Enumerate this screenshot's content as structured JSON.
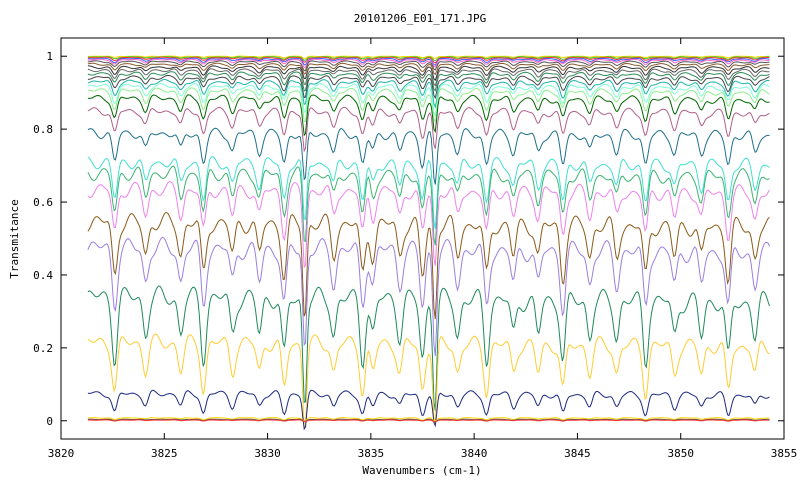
{
  "chart_data": {
    "type": "line",
    "title": "20101206_E01_171.JPG",
    "xlabel": "Wavenumbers (cm-1)",
    "ylabel": "Transmitance",
    "xlim": [
      3820,
      3855
    ],
    "ylim": [
      -0.05,
      1.05
    ],
    "x_data_range": [
      3821.3,
      3854.3
    ],
    "x_ticks": [
      3820,
      3825,
      3830,
      3835,
      3840,
      3845,
      3850,
      3855
    ],
    "y_ticks": [
      0,
      0.2,
      0.4,
      0.6,
      0.8,
      1
    ],
    "y_tick_labels": [
      "0",
      "0.2",
      "0.4",
      "0.6",
      "0.8",
      "1"
    ],
    "grid": false,
    "legend": "none",
    "absorption_lines_cm1": [
      3822.6,
      3824.1,
      3825.8,
      3826.9,
      3828.3,
      3829.6,
      3830.8,
      3831.8,
      3833.2,
      3834.6,
      3835.1,
      3836.4,
      3837.5,
      3838.1,
      3839.2,
      3840.6,
      3841.9,
      3843.1,
      3844.3,
      3845.6,
      3846.9,
      3848.3,
      3849.7,
      3851.0,
      3852.3,
      3853.6
    ],
    "series": [
      {
        "color": "#ffd400",
        "baseline": 1.0,
        "depth": 0.004
      },
      {
        "color": "#33cc33",
        "baseline": 0.998,
        "depth": 0.006
      },
      {
        "color": "#ff3333",
        "baseline": 0.996,
        "depth": 0.008
      },
      {
        "color": "#3366ff",
        "baseline": 0.993,
        "depth": 0.01
      },
      {
        "color": "#ff66cc",
        "baseline": 0.99,
        "depth": 0.012
      },
      {
        "color": "#555555",
        "baseline": 0.985,
        "depth": 0.015
      },
      {
        "color": "#8b5a2b",
        "baseline": 0.978,
        "depth": 0.018
      },
      {
        "color": "#333333",
        "baseline": 0.97,
        "depth": 0.022
      },
      {
        "color": "#666666",
        "baseline": 0.962,
        "depth": 0.026
      },
      {
        "color": "#2e8b57",
        "baseline": 0.953,
        "depth": 0.03
      },
      {
        "color": "#444444",
        "baseline": 0.942,
        "depth": 0.035
      },
      {
        "color": "#20b2aa",
        "baseline": 0.93,
        "depth": 0.04
      },
      {
        "color": "#7fffd4",
        "baseline": 0.918,
        "depth": 0.045
      },
      {
        "color": "#90ee90",
        "baseline": 0.905,
        "depth": 0.05
      },
      {
        "color": "#006400",
        "baseline": 0.885,
        "depth": 0.06
      },
      {
        "color": "#b0608a",
        "baseline": 0.85,
        "depth": 0.07
      },
      {
        "color": "#1f6f8b",
        "baseline": 0.79,
        "depth": 0.09
      },
      {
        "color": "#40e0d0",
        "baseline": 0.71,
        "depth": 0.11
      },
      {
        "color": "#3cb371",
        "baseline": 0.68,
        "depth": 0.12
      },
      {
        "color": "#ee82ee",
        "baseline": 0.635,
        "depth": 0.13
      },
      {
        "color": "#8b5a1a",
        "baseline": 0.545,
        "depth": 0.16
      },
      {
        "color": "#9b7fe0",
        "baseline": 0.475,
        "depth": 0.17
      },
      {
        "color": "#1e8a5a",
        "baseline": 0.34,
        "depth": 0.18
      },
      {
        "color": "#ffcc33",
        "baseline": 0.215,
        "depth": 0.14
      },
      {
        "color": "#1c2a80",
        "baseline": 0.075,
        "depth": 0.06
      },
      {
        "color": "#ffd400",
        "baseline": 0.008,
        "depth": 0.006
      },
      {
        "color": "#555555",
        "baseline": 0.004,
        "depth": 0.004
      },
      {
        "color": "#ff3333",
        "baseline": 0.002,
        "depth": 0.003
      }
    ]
  }
}
